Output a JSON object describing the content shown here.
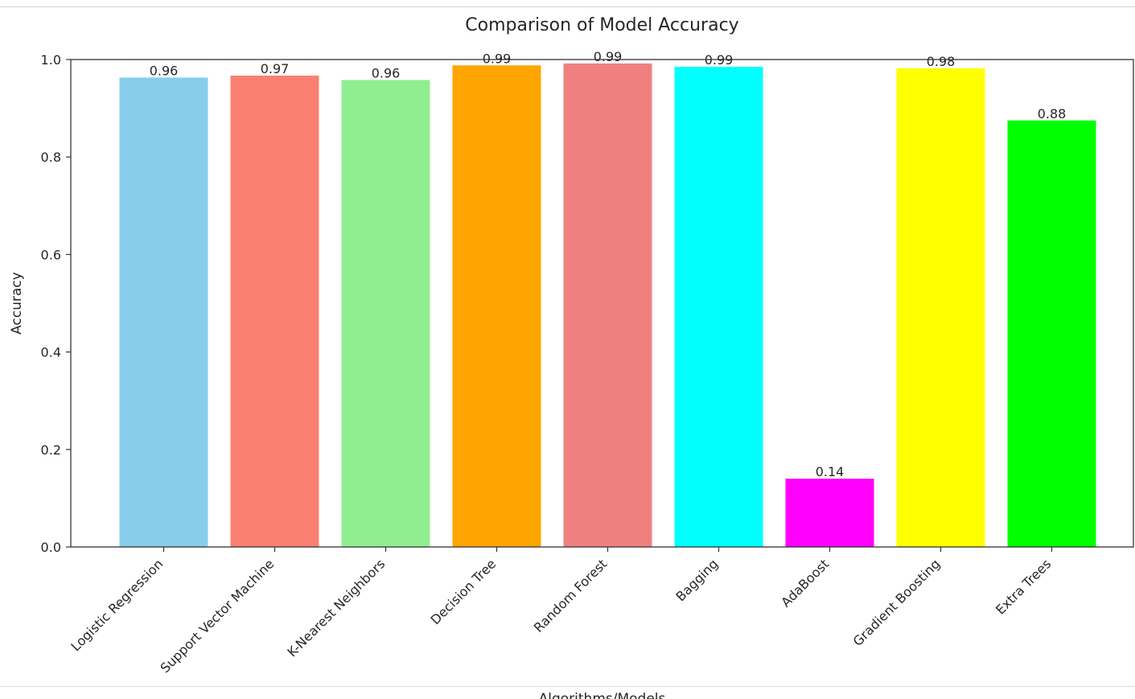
{
  "chart_data": {
    "type": "bar",
    "title": "Comparison of Model Accuracy",
    "xlabel": "Algorithms/Models",
    "ylabel": "Accuracy",
    "ylim": [
      0,
      1.0
    ],
    "yticks": [
      "0.0",
      "0.2",
      "0.4",
      "0.6",
      "0.8",
      "1.0"
    ],
    "grid": false,
    "categories": [
      "Logistic Regression",
      "Support Vector Machine",
      "K-Nearest Neighbors",
      "Decision Tree",
      "Random Forest",
      "Bagging",
      "AdaBoost",
      "Gradient Boosting",
      "Extra Trees"
    ],
    "values": [
      0.963,
      0.967,
      0.958,
      0.988,
      0.992,
      0.985,
      0.14,
      0.982,
      0.875
    ],
    "value_labels": [
      "0.96",
      "0.97",
      "0.96",
      "0.99",
      "0.99",
      "0.99",
      "0.14",
      "0.98",
      "0.88"
    ],
    "colors": [
      "#87ceeb",
      "#fa8072",
      "#90ee90",
      "#ffa500",
      "#f08080",
      "#00ffff",
      "#ff00ff",
      "#ffff00",
      "#00ff00"
    ]
  }
}
